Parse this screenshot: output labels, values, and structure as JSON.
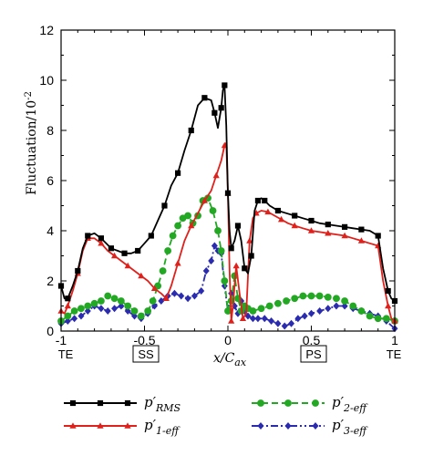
{
  "chart_data": {
    "type": "line",
    "ylabel": "Fluctuation/10",
    "ylabel_exponent": "-2",
    "xlabel_main": "x/C",
    "xlabel_sub": "ax",
    "xlim": [
      -1,
      1
    ],
    "ylim": [
      0,
      12
    ],
    "x_ticks": [
      "-1",
      "-0.5",
      "0",
      "0.5",
      "1"
    ],
    "y_ticks": [
      "0",
      "2",
      "4",
      "6",
      "8",
      "10",
      "12"
    ],
    "side_labels": {
      "te_left": "TE",
      "ss": "SS",
      "ps": "PS",
      "te_right": "TE"
    },
    "legend_position": "bottom",
    "series": [
      {
        "name_main": "p′",
        "name_sub": "RMS",
        "color": "#000000",
        "marker": "square",
        "dash": "solid",
        "x": [
          -1.0,
          -0.98,
          -0.96,
          -0.93,
          -0.9,
          -0.87,
          -0.84,
          -0.8,
          -0.76,
          -0.73,
          -0.7,
          -0.66,
          -0.62,
          -0.58,
          -0.54,
          -0.5,
          -0.46,
          -0.42,
          -0.38,
          -0.34,
          -0.3,
          -0.26,
          -0.22,
          -0.18,
          -0.14,
          -0.1,
          -0.08,
          -0.06,
          -0.04,
          -0.03,
          -0.02,
          -0.01,
          0.0,
          0.01,
          0.02,
          0.04,
          0.06,
          0.08,
          0.1,
          0.12,
          0.14,
          0.16,
          0.18,
          0.2,
          0.22,
          0.25,
          0.3,
          0.35,
          0.4,
          0.45,
          0.5,
          0.55,
          0.6,
          0.65,
          0.7,
          0.75,
          0.8,
          0.85,
          0.9,
          0.93,
          0.96,
          0.98,
          1.0
        ],
        "y": [
          1.8,
          1.3,
          1.3,
          1.8,
          2.4,
          3.3,
          3.8,
          3.9,
          3.7,
          3.5,
          3.3,
          3.2,
          3.1,
          3.1,
          3.2,
          3.5,
          3.8,
          4.4,
          5.0,
          5.8,
          6.3,
          7.2,
          8.0,
          9.0,
          9.3,
          9.2,
          8.7,
          8.1,
          8.9,
          9.6,
          9.8,
          8.2,
          5.5,
          4.0,
          3.3,
          3.6,
          4.2,
          3.6,
          2.5,
          2.3,
          3.0,
          4.8,
          5.2,
          5.3,
          5.2,
          5.0,
          4.8,
          4.7,
          4.6,
          4.5,
          4.4,
          4.3,
          4.25,
          4.2,
          4.15,
          4.1,
          4.05,
          4.0,
          3.8,
          2.5,
          1.6,
          1.3,
          1.2
        ]
      },
      {
        "name_main": "p′",
        "name_sub": "1-eff",
        "color": "#e0201b",
        "marker": "triangle",
        "dash": "solid",
        "x": [
          -1.0,
          -0.98,
          -0.96,
          -0.93,
          -0.9,
          -0.87,
          -0.84,
          -0.8,
          -0.76,
          -0.72,
          -0.68,
          -0.64,
          -0.6,
          -0.56,
          -0.52,
          -0.48,
          -0.44,
          -0.4,
          -0.37,
          -0.34,
          -0.3,
          -0.26,
          -0.22,
          -0.18,
          -0.14,
          -0.1,
          -0.07,
          -0.04,
          -0.02,
          -0.01,
          0.0,
          0.01,
          0.02,
          0.03,
          0.05,
          0.07,
          0.09,
          0.11,
          0.13,
          0.15,
          0.17,
          0.2,
          0.24,
          0.28,
          0.32,
          0.36,
          0.4,
          0.45,
          0.5,
          0.55,
          0.6,
          0.65,
          0.7,
          0.75,
          0.8,
          0.85,
          0.9,
          0.93,
          0.96,
          0.98,
          1.0
        ],
        "y": [
          0.8,
          0.7,
          1.0,
          1.6,
          2.3,
          3.2,
          3.7,
          3.7,
          3.5,
          3.2,
          3.0,
          2.8,
          2.6,
          2.4,
          2.2,
          2.0,
          1.7,
          1.5,
          1.3,
          1.8,
          2.7,
          3.6,
          4.2,
          4.7,
          5.2,
          5.6,
          6.2,
          6.8,
          7.4,
          7.5,
          5.5,
          2.4,
          0.4,
          1.0,
          2.6,
          1.5,
          0.5,
          0.7,
          3.6,
          4.5,
          4.7,
          4.8,
          4.75,
          4.6,
          4.45,
          4.3,
          4.2,
          4.1,
          4.0,
          3.95,
          3.9,
          3.85,
          3.8,
          3.7,
          3.6,
          3.5,
          3.4,
          2.0,
          1.0,
          0.5,
          0.4
        ]
      },
      {
        "name_main": "p′",
        "name_sub": "2-eff",
        "color": "#22a822",
        "marker": "circle",
        "dash": "dashed",
        "x": [
          -1.0,
          -0.96,
          -0.92,
          -0.88,
          -0.84,
          -0.8,
          -0.76,
          -0.72,
          -0.68,
          -0.64,
          -0.6,
          -0.56,
          -0.52,
          -0.48,
          -0.45,
          -0.42,
          -0.39,
          -0.36,
          -0.33,
          -0.3,
          -0.27,
          -0.24,
          -0.21,
          -0.18,
          -0.15,
          -0.12,
          -0.09,
          -0.06,
          -0.04,
          -0.02,
          0.0,
          0.02,
          0.04,
          0.06,
          0.08,
          0.1,
          0.12,
          0.15,
          0.2,
          0.25,
          0.3,
          0.35,
          0.4,
          0.45,
          0.5,
          0.55,
          0.6,
          0.65,
          0.7,
          0.75,
          0.8,
          0.85,
          0.9,
          0.95,
          1.0
        ],
        "y": [
          0.4,
          0.6,
          0.8,
          0.9,
          1.0,
          1.1,
          1.2,
          1.4,
          1.3,
          1.2,
          1.0,
          0.8,
          0.6,
          0.8,
          1.2,
          1.8,
          2.4,
          3.2,
          3.8,
          4.2,
          4.5,
          4.6,
          4.3,
          4.6,
          5.2,
          5.3,
          4.8,
          4.0,
          3.2,
          2.0,
          0.8,
          1.2,
          2.2,
          1.3,
          0.8,
          1.0,
          0.9,
          0.8,
          0.9,
          1.0,
          1.1,
          1.2,
          1.3,
          1.4,
          1.4,
          1.4,
          1.35,
          1.3,
          1.2,
          1.0,
          0.8,
          0.6,
          0.5,
          0.5,
          0.4
        ]
      },
      {
        "name_main": "p′",
        "name_sub": "3-eff",
        "color": "#2b2bb0",
        "marker": "diamond",
        "dash": "dashdot",
        "x": [
          -1.0,
          -0.96,
          -0.92,
          -0.88,
          -0.84,
          -0.8,
          -0.76,
          -0.72,
          -0.68,
          -0.64,
          -0.6,
          -0.56,
          -0.52,
          -0.48,
          -0.44,
          -0.4,
          -0.36,
          -0.32,
          -0.28,
          -0.24,
          -0.2,
          -0.16,
          -0.13,
          -0.1,
          -0.08,
          -0.06,
          -0.04,
          -0.02,
          0.0,
          0.02,
          0.04,
          0.06,
          0.08,
          0.1,
          0.12,
          0.15,
          0.18,
          0.22,
          0.26,
          0.3,
          0.34,
          0.38,
          0.42,
          0.46,
          0.5,
          0.55,
          0.6,
          0.65,
          0.7,
          0.75,
          0.8,
          0.85,
          0.9,
          0.95,
          1.0
        ],
        "y": [
          0.3,
          0.4,
          0.5,
          0.6,
          0.8,
          1.0,
          0.9,
          0.8,
          0.9,
          1.0,
          0.8,
          0.6,
          0.5,
          0.7,
          1.0,
          1.2,
          1.4,
          1.5,
          1.4,
          1.3,
          1.4,
          1.6,
          2.4,
          2.8,
          3.4,
          3.2,
          3.1,
          1.8,
          0.8,
          1.5,
          1.0,
          0.7,
          1.2,
          0.8,
          0.6,
          0.5,
          0.5,
          0.5,
          0.4,
          0.3,
          0.2,
          0.3,
          0.5,
          0.6,
          0.7,
          0.8,
          0.9,
          1.0,
          1.0,
          0.9,
          0.8,
          0.7,
          0.6,
          0.4,
          0.1
        ]
      }
    ]
  }
}
